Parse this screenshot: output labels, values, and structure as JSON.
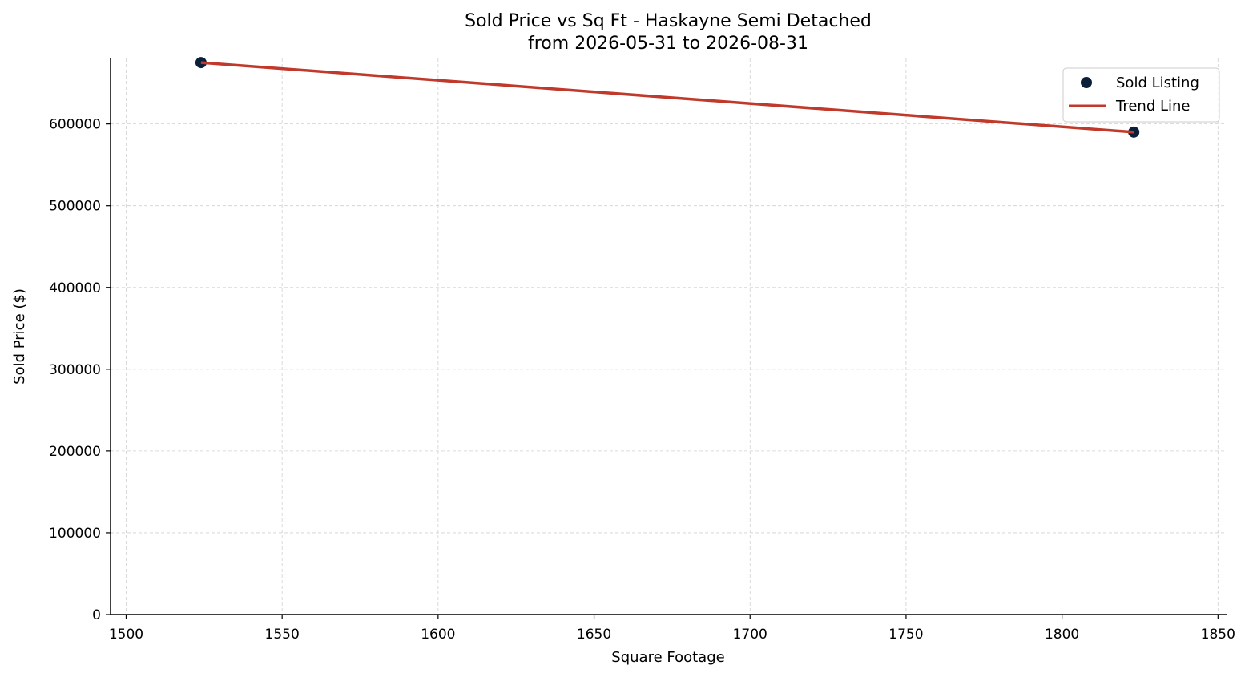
{
  "chart_data": {
    "type": "scatter",
    "title": "Sold Price vs Sq Ft - Haskayne Semi Detached",
    "subtitle": "from 2026-05-31 to 2026-08-31",
    "xlabel": "Square Footage",
    "ylabel": "Sold Price ($)",
    "xlim": [
      1495,
      1853
    ],
    "ylim": [
      0,
      680000
    ],
    "xticks": [
      1500,
      1550,
      1600,
      1650,
      1700,
      1750,
      1800,
      1850
    ],
    "yticks": [
      0,
      100000,
      200000,
      300000,
      400000,
      500000,
      600000
    ],
    "grid": true,
    "legend_position": "top-right",
    "series": [
      {
        "name": "Sold Listing",
        "kind": "scatter",
        "color": "#0b1f3a",
        "points": [
          {
            "x": 1524,
            "y": 675000
          },
          {
            "x": 1823,
            "y": 590000
          }
        ]
      },
      {
        "name": "Trend Line",
        "kind": "line",
        "color": "#c0392b",
        "points": [
          {
            "x": 1524,
            "y": 675000
          },
          {
            "x": 1823,
            "y": 590000
          }
        ]
      }
    ]
  }
}
